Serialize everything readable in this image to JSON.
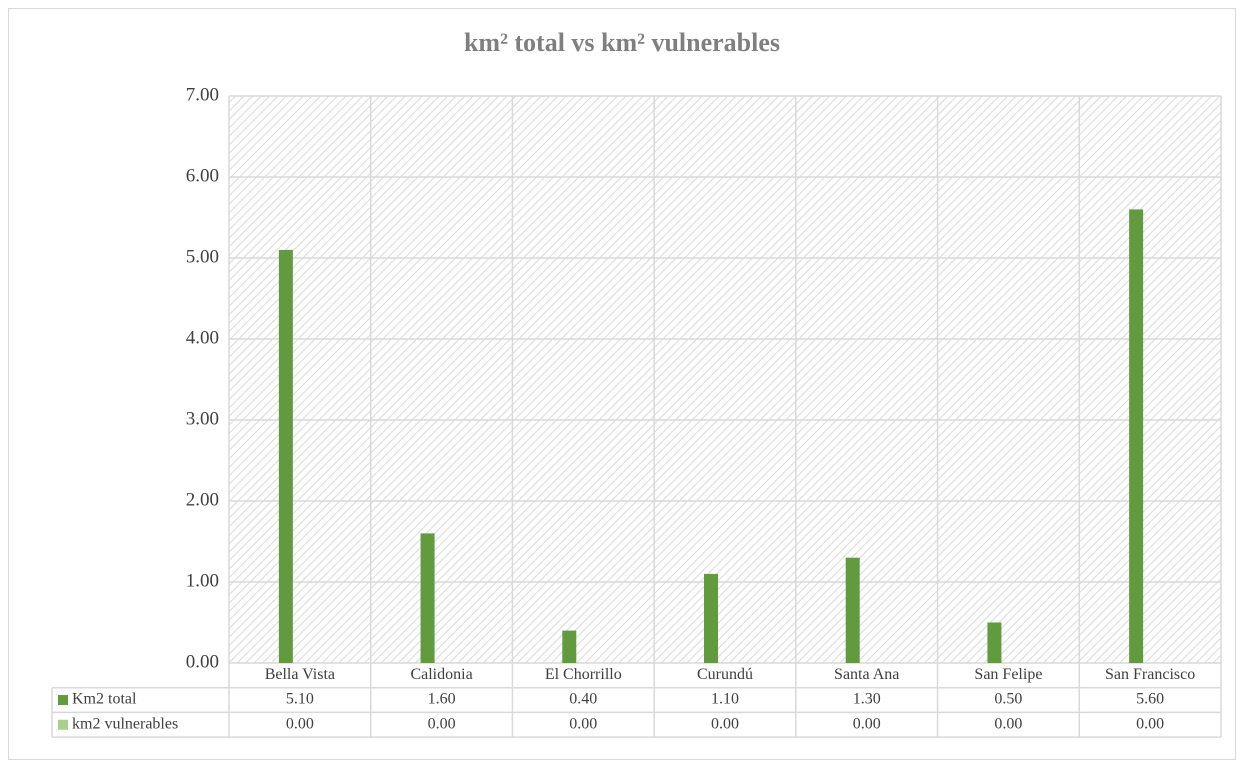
{
  "chart_data": {
    "type": "bar",
    "title": "km² total vs km² vulnerables",
    "categories": [
      "Bella Vista",
      "Calidonia",
      "El Chorrillo",
      "Curundú",
      "Santa Ana",
      "San Felipe",
      "San Francisco"
    ],
    "series": [
      {
        "name": "Km2 total",
        "color": "#629b3e",
        "values": [
          5.1,
          1.6,
          0.4,
          1.1,
          1.3,
          0.5,
          5.6
        ],
        "value_labels": [
          "5.10",
          "1.60",
          "0.40",
          "1.10",
          "1.30",
          "0.50",
          "5.60"
        ]
      },
      {
        "name": "km2 vulnerables",
        "color": "#a9d18e",
        "values": [
          0,
          0,
          0,
          0,
          0,
          0,
          0
        ],
        "value_labels": [
          "0.00",
          "0.00",
          "0.00",
          "0.00",
          "0.00",
          "0.00",
          "0.00"
        ]
      }
    ],
    "ylim": [
      0,
      7
    ],
    "yticks": [
      {
        "value": 0,
        "label": "0.00"
      },
      {
        "value": 1,
        "label": "1.00"
      },
      {
        "value": 2,
        "label": "2.00"
      },
      {
        "value": 3,
        "label": "3.00"
      },
      {
        "value": 4,
        "label": "4.00"
      },
      {
        "value": 5,
        "label": "5.00"
      },
      {
        "value": 6,
        "label": "6.00"
      },
      {
        "value": 7,
        "label": "7.00"
      }
    ],
    "grid": true
  }
}
